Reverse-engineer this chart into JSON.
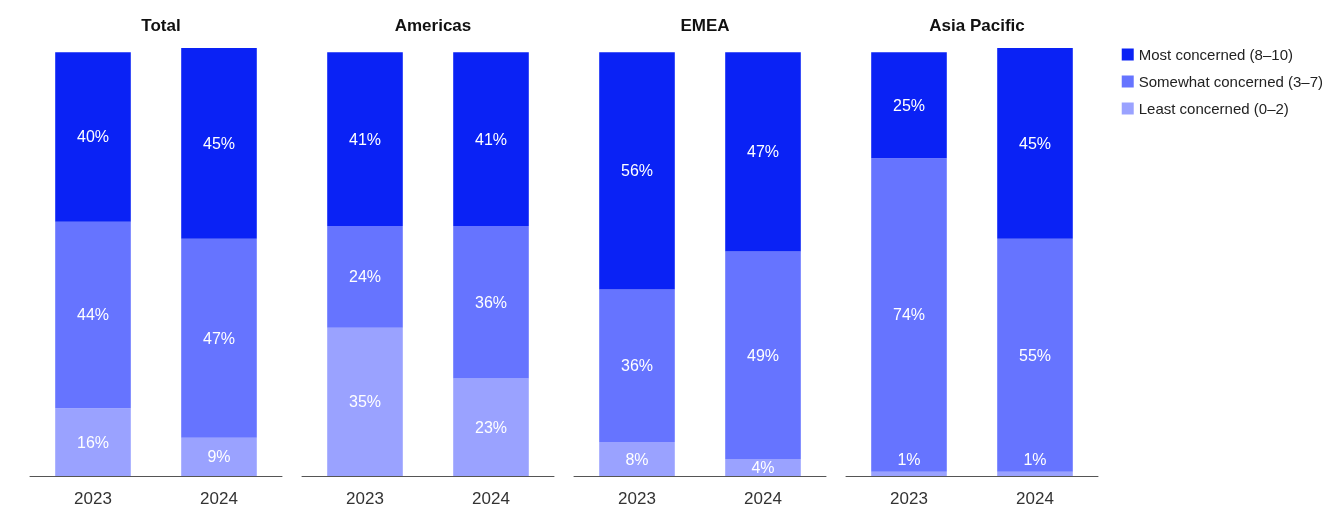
{
  "chart_data": [
    {
      "type": "bar",
      "title": "Total",
      "categories": [
        "2023",
        "2024"
      ],
      "stacked": true,
      "legend": false,
      "tick_labels": "x",
      "series": [
        {
          "color": "#9aa2ff",
          "values": [
            16,
            9
          ],
          "value_labels": [
            "16%",
            "9%"
          ]
        },
        {
          "color": "#6674ff",
          "values": [
            44,
            47
          ],
          "value_labels": [
            "44%",
            "47%"
          ]
        },
        {
          "color": "#0a22f5",
          "values": [
            40,
            45
          ],
          "value_labels": [
            "40%",
            "45%"
          ]
        }
      ]
    },
    {
      "type": "bar",
      "title": "Americas",
      "categories": [
        "2023",
        "2024"
      ],
      "stacked": true,
      "legend": false,
      "tick_labels": "x",
      "series": [
        {
          "color": "#9aa2ff",
          "values": [
            35,
            23
          ],
          "value_labels": [
            "35%",
            "23%"
          ]
        },
        {
          "color": "#6674ff",
          "values": [
            24,
            36
          ],
          "value_labels": [
            "24%",
            "36%"
          ]
        },
        {
          "color": "#0a22f5",
          "values": [
            41,
            41
          ],
          "value_labels": [
            "41%",
            "41%"
          ]
        }
      ]
    },
    {
      "type": "bar",
      "title": "EMEA",
      "categories": [
        "2023",
        "2024"
      ],
      "stacked": true,
      "legend": false,
      "tick_labels": "x",
      "series": [
        {
          "color": "#9aa2ff",
          "values": [
            8,
            4
          ],
          "value_labels": [
            "8%",
            "4%"
          ]
        },
        {
          "color": "#6674ff",
          "values": [
            36,
            49
          ],
          "value_labels": [
            "36%",
            "49%"
          ]
        },
        {
          "color": "#0a22f5",
          "values": [
            56,
            47
          ],
          "value_labels": [
            "56%",
            "47%"
          ]
        }
      ]
    },
    {
      "type": "bar",
      "title": "Asia Pacific",
      "categories": [
        "2023",
        "2024"
      ],
      "stacked": true,
      "legend": "right",
      "tick_labels": "x",
      "series": [
        {
          "name": "Least concerned (0–2)",
          "color": "#9aa2ff",
          "values": [
            1,
            1
          ],
          "value_labels": [
            "1%",
            "1%"
          ]
        },
        {
          "name": "Somewhat concerned (3–7)",
          "color": "#6674ff",
          "values": [
            74,
            55
          ],
          "value_labels": [
            "74%",
            "55%"
          ]
        },
        {
          "name": "Most concerned (8–10)",
          "color": "#0a22f5",
          "values": [
            25,
            45
          ],
          "value_labels": [
            "25%",
            "45%"
          ]
        }
      ]
    }
  ]
}
